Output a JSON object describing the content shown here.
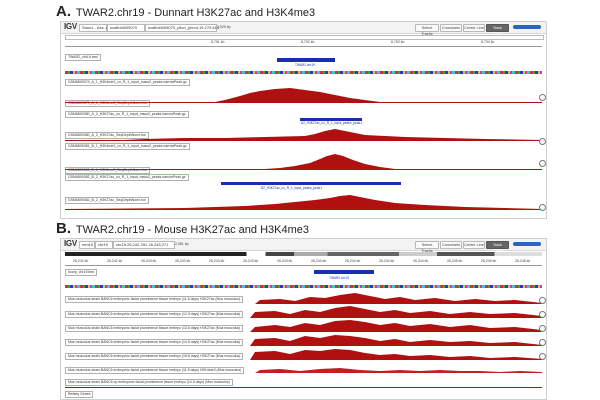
{
  "panel_a": {
    "letter": "A.",
    "title": "TWAR2.chr19 - Dunnart H3K27ac and H3K4me3",
    "toolbar": {
      "logo": "IGV",
      "genome": "Sdun1 - Ass..ost",
      "chrom": "scaffold009070",
      "locus": "scaffold009070_pilon_phm4:19,279,414",
      "size": "2,929 bp",
      "select_tracks": "Select Tracks",
      "crosshairs": "Crosshairs",
      "center_line": "Center Line",
      "track_labels": "Track Labels"
    },
    "ruler": [
      "8,791 kb",
      "8,792 kb",
      "8,793 kb",
      "8,794 kb"
    ],
    "gene_track": "TWAR2_chr19.bed",
    "gene_label": "TWAR2.chr19",
    "tracks": [
      {
        "label": "GSM6809379_A_1_H3K4me3_co_R_1_input_macs2_peaks.narrowPeak.gz",
        "type": "peak"
      },
      {
        "label": "GSM6809379_A_1_H3K4me3_SeqDepthNorm.bw",
        "type": "cov",
        "scale": "[0-..]"
      },
      {
        "label": "GSM6809380_A_2_H3K27ac_co_R_1_input_macs2_peaks.narrowPeak.gz",
        "type": "peak",
        "peak_label": "A2_H3K27ac_co_R_1_input_peaks_peak1"
      },
      {
        "label": "GSM6809380_A_2_H3K27ac_SeqDepthNorm.bw",
        "type": "cov",
        "scale": "[0-..]"
      },
      {
        "label": "GSM6809381_B_1_H3K4me3_co_R_1_input_macs2_peaks.narrowPeak.gz",
        "type": "peak"
      },
      {
        "label": "GSM6809381_B_1_H3K4me3_SeqDepthNorm.bw",
        "type": "cov",
        "scale": "[0-..]"
      },
      {
        "label": "GSM6809382_B_2_H3K27ac_co_R_1_input_macs2_peaks.narrowPeak.gz",
        "type": "peak",
        "peak_label": "B2_H3K27ac_co_R_1_input_peaks_peak1"
      },
      {
        "label": "GSM6809382_B_2_H3K27ac_SeqDepthNorm.bw",
        "type": "cov",
        "scale": "[0-..]"
      }
    ]
  },
  "panel_b": {
    "letter": "B.",
    "title": "TWAR2.chr19 - Mouse H3K27ac and H3K4me3",
    "toolbar": {
      "logo": "IGV",
      "genome": "mm10",
      "chrom": "chr19",
      "locus": "chr19:26,242,291-26,245,271",
      "size": "2,981 bp",
      "select_tracks": "Select Tracks",
      "crosshairs": "Crosshairs",
      "center_line": "Center Line",
      "track_labels": "Track Labels"
    },
    "ruler": [
      "26,242 kb",
      "26,242 kb",
      "26,243 kb",
      "26,243 kb",
      "26,243 kb",
      "26,243 kb",
      "26,243 kb",
      "26,244 kb",
      "26,244 kb",
      "26,244 kb",
      "26,244 kb",
      "26,245 kb",
      "26,245 kb",
      "26,245 kb"
    ],
    "gene_track": "bcorp_chr19.bed",
    "gene_label": "TWAR2.chr19",
    "tracks": [
      {
        "label": "Mus musculus strain BANC6 embryonic facial prominence tissue embryo (11.5 days) H3K27ac (Mus musculus)"
      },
      {
        "label": "Mus musculus strain BANC6 embryonic facial prominence tissue embryo (12.5 days) H3K27ac (Mus musculus)"
      },
      {
        "label": "Mus musculus strain BANC6 embryonic facial prominence tissue embryo (13.5 days) H3K27ac (Mus musculus)"
      },
      {
        "label": "Mus musculus strain BANC6 embryonic facial prominence tissue embryo (14.5 days) H3K27ac (Mus musculus)"
      },
      {
        "label": "Mus musculus strain BANC6 embryonic facial prominence tissue embryo (15.5 days) H3K27ac (Mus musculus)"
      },
      {
        "label": "Mus musculus strain BANC6 embryonic facial prominence tissue embryo (11.5 days) H3K4me3 (Mus musculus)"
      },
      {
        "label": "Mus musculus strain BANC6 up embryonic facial prominence tissue embryo (14.5 days) (Mus musculus)"
      }
    ],
    "refseq": "Refseq Genes"
  },
  "colors": {
    "signal": "#b01010",
    "gene": "#1a2fb0",
    "zoom": "#2a64c8"
  }
}
